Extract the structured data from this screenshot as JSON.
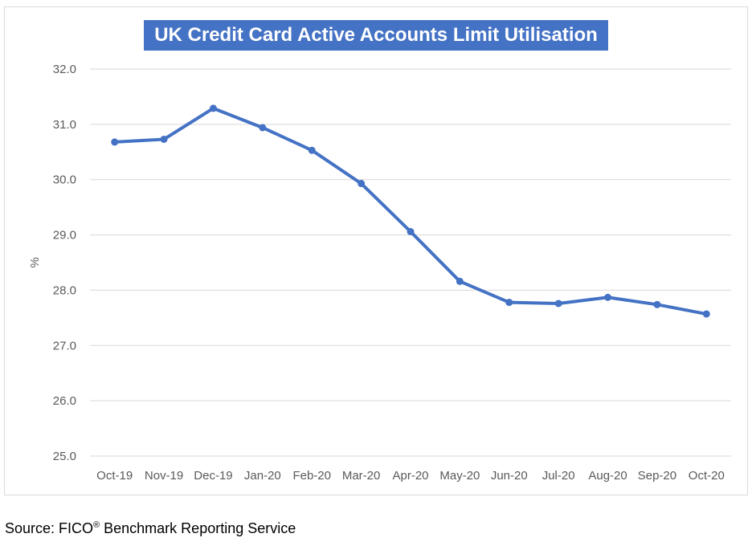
{
  "chart_data": {
    "type": "line",
    "title": "UK Credit Card Active Accounts Limit Utilisation",
    "xlabel": "",
    "ylabel": "%",
    "categories": [
      "Oct-19",
      "Nov-19",
      "Dec-19",
      "Jan-20",
      "Feb-20",
      "Mar-20",
      "Apr-20",
      "May-20",
      "Jun-20",
      "Jul-20",
      "Aug-20",
      "Sep-20",
      "Oct-20"
    ],
    "series": [
      {
        "values": [
          30.68,
          30.73,
          31.29,
          30.94,
          30.53,
          29.93,
          29.06,
          28.16,
          27.78,
          27.76,
          27.87,
          27.74,
          27.57
        ]
      }
    ],
    "ylim": [
      25.0,
      32.0
    ],
    "yticks": [
      "25.0",
      "26.0",
      "27.0",
      "28.0",
      "29.0",
      "30.0",
      "31.0",
      "32.0"
    ],
    "grid": true,
    "legend": "none",
    "line_color": "#4472c4"
  },
  "source": {
    "prefix": "Source: FICO",
    "mark": "®",
    "suffix": " Benchmark Reporting Service"
  }
}
